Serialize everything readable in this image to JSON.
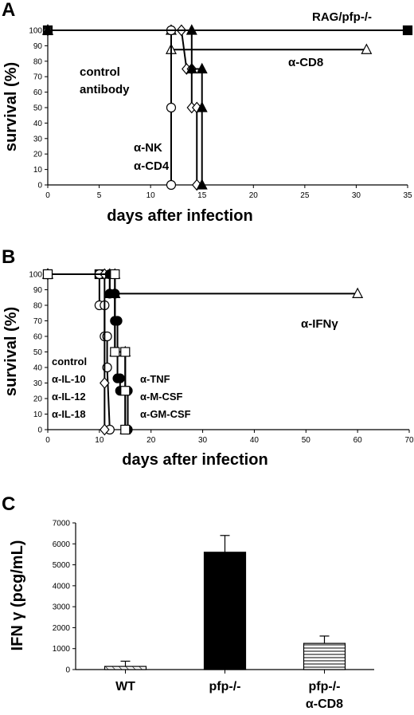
{
  "chart_data": [
    {
      "panel": "A",
      "type": "line",
      "xlabel": "days after infection",
      "ylabel": "survival (%)",
      "xlim": [
        0,
        35
      ],
      "ylim": [
        0,
        100
      ],
      "xticks": [
        0,
        5,
        10,
        15,
        20,
        25,
        30,
        35
      ],
      "yticks": [
        0,
        10,
        20,
        30,
        40,
        50,
        60,
        70,
        80,
        90,
        100
      ],
      "series": [
        {
          "name": "RAG/pfp-/-",
          "marker": "square-filled",
          "x": [
            0,
            35
          ],
          "y": [
            100,
            100
          ]
        },
        {
          "name": "α-CD8",
          "marker": "triangle-open",
          "x": [
            0,
            12,
            12,
            31
          ],
          "y": [
            100,
            100,
            87.5,
            87.5
          ]
        },
        {
          "name": "control antibody",
          "marker": "circle-open",
          "x": [
            0,
            12,
            12,
            12
          ],
          "y": [
            100,
            100,
            50,
            0
          ]
        },
        {
          "name": "",
          "marker": "diamond-open",
          "x": [
            0,
            13,
            13.5,
            14,
            14,
            14.5,
            14.5
          ],
          "y": [
            100,
            100,
            75,
            75,
            50,
            50,
            0
          ]
        },
        {
          "name": "",
          "marker": "triangle-filled",
          "x": [
            0,
            14,
            14,
            15,
            15,
            15
          ],
          "y": [
            100,
            100,
            75,
            75,
            50,
            0
          ]
        }
      ],
      "annotations": [
        {
          "text": "RAG/pfp-/-"
        },
        {
          "text": "α-CD8"
        },
        {
          "text": "control"
        },
        {
          "text": "antibody"
        },
        {
          "text": "α-NK"
        },
        {
          "text": "α-CD4"
        }
      ]
    },
    {
      "panel": "B",
      "type": "line",
      "xlabel": "days after infection",
      "ylabel": "survival (%)",
      "xlim": [
        0,
        70
      ],
      "ylim": [
        0,
        100
      ],
      "xticks": [
        0,
        10,
        20,
        30,
        40,
        50,
        60,
        70
      ],
      "yticks": [
        0,
        10,
        20,
        30,
        40,
        50,
        60,
        70,
        80,
        90,
        100
      ],
      "series": [
        {
          "name": "",
          "marker": "square-filled",
          "x": [
            0,
            10
          ],
          "y": [
            100,
            100
          ]
        },
        {
          "name": "α-IFNγ",
          "marker": "triangle-open",
          "x": [
            0,
            13,
            13,
            60
          ],
          "y": [
            100,
            100,
            87.5,
            87.5
          ]
        },
        {
          "name": "",
          "marker": "circle-open",
          "x": [
            0,
            10,
            10,
            11,
            11,
            11.5,
            11.5,
            12
          ],
          "y": [
            100,
            100,
            80,
            80,
            60,
            60,
            40,
            0
          ]
        },
        {
          "name": "",
          "marker": "diamond-open",
          "x": [
            0,
            11,
            11,
            11
          ],
          "y": [
            100,
            100,
            30,
            0
          ]
        },
        {
          "name": "",
          "marker": "circle-filled",
          "x": [
            0,
            12,
            12,
            13,
            13,
            13.5,
            13.5,
            14,
            14,
            15.5,
            15.5
          ],
          "y": [
            100,
            100,
            87.5,
            87.5,
            70,
            70,
            33,
            33,
            25,
            25,
            0
          ]
        },
        {
          "name": "",
          "marker": "triangle-filled",
          "x": [
            0,
            12,
            12,
            13,
            13,
            15,
            15
          ],
          "y": [
            100,
            100,
            87.5,
            87.5,
            50,
            50,
            0
          ]
        },
        {
          "name": "",
          "marker": "square-open",
          "x": [
            0,
            13,
            13,
            15,
            15,
            15
          ],
          "y": [
            100,
            100,
            50,
            50,
            25,
            0
          ]
        }
      ],
      "annotations": [
        {
          "text": "α-IFNγ"
        },
        {
          "text": "control"
        },
        {
          "text": "α-IL-10"
        },
        {
          "text": "α-IL-12"
        },
        {
          "text": "α-IL-18"
        },
        {
          "text": "α-TNF"
        },
        {
          "text": "α-M-CSF"
        },
        {
          "text": "α-GM-CSF"
        }
      ]
    },
    {
      "panel": "C",
      "type": "bar",
      "categories": [
        "WT",
        "pfp-/-",
        "pfp-/-\nα-CD8"
      ],
      "category_lines": [
        [
          "WT"
        ],
        [
          "pfp-/-"
        ],
        [
          "pfp-/-",
          "α-CD8"
        ]
      ],
      "values": [
        150,
        5600,
        1250
      ],
      "errors": [
        250,
        800,
        350
      ],
      "fills": [
        "hatch-diagonal",
        "solid-black",
        "hatch-horizontal"
      ],
      "ylabel": "IFN γ (pcg/mL)",
      "xlabel": "",
      "ylim": [
        0,
        7000
      ],
      "yticks": [
        0,
        1000,
        2000,
        3000,
        4000,
        5000,
        6000,
        7000
      ]
    }
  ]
}
